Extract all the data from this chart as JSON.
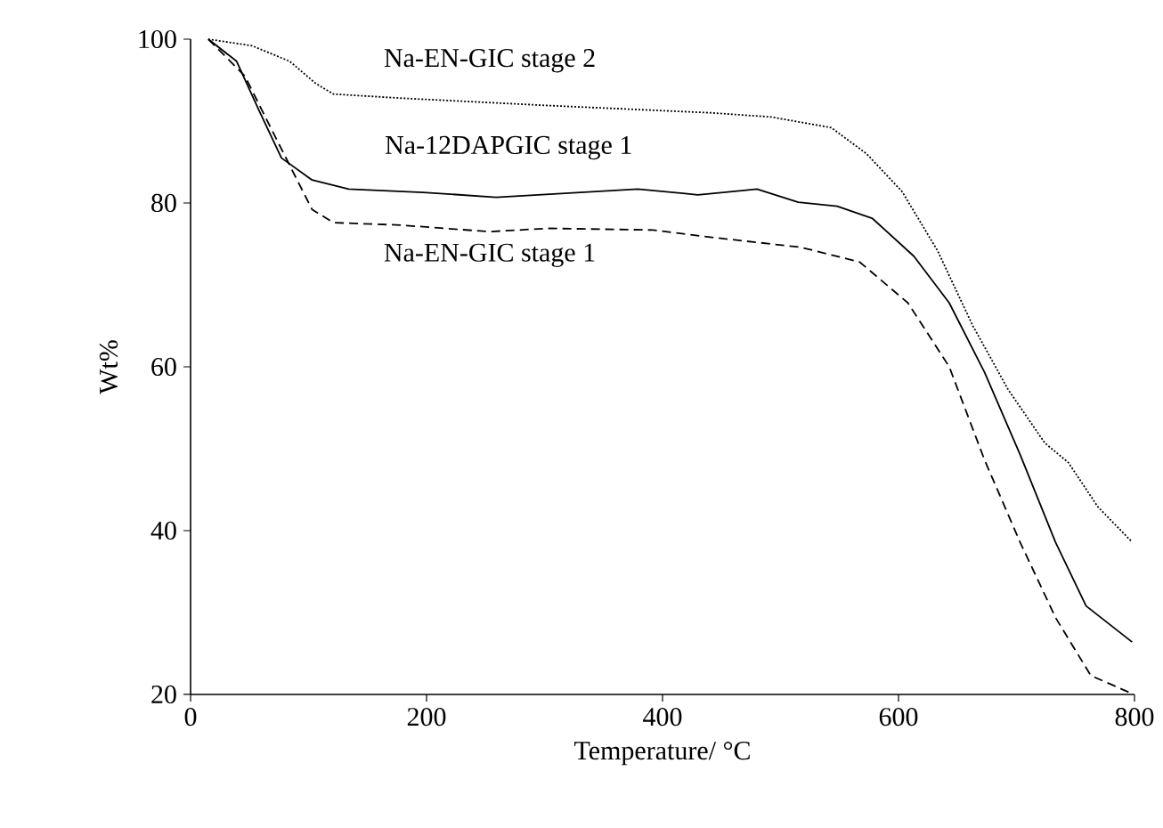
{
  "chart_data": {
    "type": "line",
    "xlabel": "Temperature/ °C",
    "ylabel": "Wt%",
    "xlim": [
      0,
      800
    ],
    "ylim": [
      20,
      100
    ],
    "xticks": [
      0,
      200,
      400,
      600,
      800
    ],
    "yticks": [
      20,
      40,
      60,
      80,
      100
    ],
    "grid": false,
    "legend": false,
    "marker": "none",
    "series": [
      {
        "name": "Na-EN-GIC stage 2",
        "color": "#000000",
        "line_style": "dotted",
        "x": [
          15,
          52,
          84,
          106,
          121,
          178,
          303,
          442,
          492,
          543,
          573,
          603,
          633,
          663,
          693,
          724,
          744,
          769,
          798
        ],
        "values": [
          100,
          99.2,
          97.3,
          94.6,
          93.3,
          92.8,
          91.9,
          91.0,
          90.5,
          89.2,
          86.0,
          81.4,
          74.2,
          65.0,
          57.2,
          50.7,
          48.3,
          42.9,
          38.6
        ]
      },
      {
        "name": "Na-12DAPGIC stage 1",
        "color": "#000000",
        "line_style": "solid",
        "x": [
          15,
          39,
          59,
          77,
          103,
          134,
          197,
          259,
          379,
          430,
          467,
          480,
          515,
          548,
          578,
          613,
          643,
          673,
          703,
          733,
          759,
          798
        ],
        "values": [
          100,
          97.3,
          91.0,
          85.5,
          82.8,
          81.7,
          81.3,
          80.7,
          81.7,
          81.0,
          81.5,
          81.7,
          80.1,
          79.6,
          78.1,
          73.5,
          67.8,
          59.3,
          49.3,
          38.6,
          30.8,
          26.4
        ]
      },
      {
        "name": "Na-EN-GIC stage 1",
        "color": "#000000",
        "line_style": "dashed",
        "x": [
          15,
          46,
          71,
          103,
          121,
          178,
          253,
          303,
          392,
          442,
          517,
          567,
          608,
          643,
          673,
          703,
          733,
          763,
          798
        ],
        "values": [
          100,
          95.5,
          88.3,
          79.2,
          77.6,
          77.3,
          76.5,
          76.9,
          76.7,
          75.8,
          74.6,
          72.8,
          67.8,
          60.0,
          48.6,
          38.6,
          29.4,
          22.3,
          20.1
        ]
      }
    ]
  }
}
